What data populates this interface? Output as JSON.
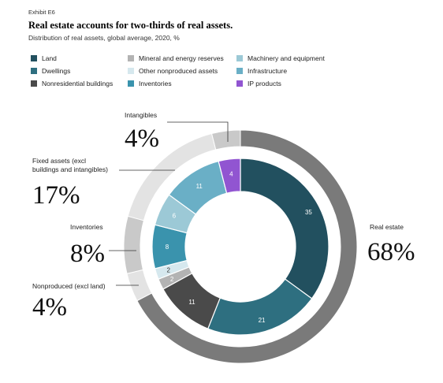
{
  "header": {
    "exhibit": "Exhibit E6",
    "title": "Real estate accounts for two-thirds of real assets.",
    "subtitle": "Distribution of real assets, global average, 2020, %"
  },
  "legend": [
    {
      "label": "Land",
      "color": "#22505f"
    },
    {
      "label": "Dwellings",
      "color": "#2e6f80"
    },
    {
      "label": "Nonresidential buildings",
      "color": "#4a4a4a"
    },
    {
      "label": "Mineral and energy reserves",
      "color": "#b3b3b3"
    },
    {
      "label": "Other nonproduced assets",
      "color": "#d6e8ee"
    },
    {
      "label": "Inventories",
      "color": "#3a93ad"
    },
    {
      "label": "Machinery and equipment",
      "color": "#9cc9d6"
    },
    {
      "label": "Infrastructure",
      "color": "#6aafc6"
    },
    {
      "label": "IP products",
      "color": "#9155d1"
    }
  ],
  "chart_data": {
    "type": "donut",
    "inner_ring": [
      {
        "category": "Land",
        "value": 35,
        "label": "35",
        "color": "#22505f"
      },
      {
        "category": "Dwellings",
        "value": 21,
        "label": "21",
        "color": "#2e6f80"
      },
      {
        "category": "Nonresidential buildings",
        "value": 11,
        "label": "11",
        "color": "#4a4a4a"
      },
      {
        "category": "Mineral and energy reserves",
        "value": 2,
        "label": "2",
        "color": "#b3b3b3"
      },
      {
        "category": "Other nonproduced assets",
        "value": 2,
        "label": "2",
        "color": "#d6e8ee"
      },
      {
        "category": "Inventories",
        "value": 8,
        "label": "8",
        "color": "#3a93ad"
      },
      {
        "category": "Machinery and equipment",
        "value": 6,
        "label": "6",
        "color": "#9cc9d6"
      },
      {
        "category": "Infrastructure",
        "value": 11,
        "label": "11",
        "color": "#6aafc6"
      },
      {
        "category": "IP products",
        "value": 4,
        "label": "4",
        "color": "#9155d1"
      }
    ],
    "outer_ring": [
      {
        "group": "Real estate",
        "value": 68,
        "display": "68%",
        "color": "#7a7a7a"
      },
      {
        "group": "Nonproduced (excl land)",
        "value": 4,
        "display": "4%",
        "color": "#e3e3e3"
      },
      {
        "group": "Inventories",
        "value": 8,
        "display": "8%",
        "color": "#c9c9c9"
      },
      {
        "group": "Fixed assets (excl buildings and intangibles)",
        "display_lines": [
          "Fixed assets (excl",
          "buildings and intangibles)"
        ],
        "value": 17,
        "display": "17%",
        "color": "#e3e3e3"
      },
      {
        "group": "Intangibles",
        "value": 4,
        "display": "4%",
        "color": "#c9c9c9"
      }
    ]
  }
}
